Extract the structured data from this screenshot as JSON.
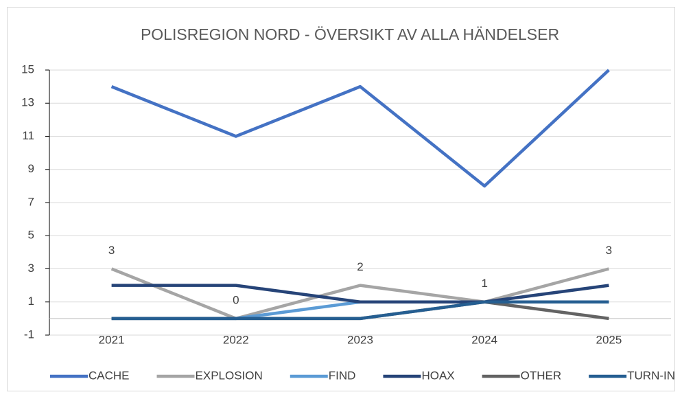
{
  "chart_data": {
    "type": "line",
    "title": "POLISREGION NORD - ÖVERSIKT AV ALLA HÄNDELSER",
    "categories": [
      "2021",
      "2022",
      "2023",
      "2024",
      "2025"
    ],
    "series": [
      {
        "name": "CACHE",
        "color": "#4472c4",
        "values": [
          14,
          11,
          14,
          8,
          15
        ]
      },
      {
        "name": "EXPLOSION",
        "color": "#a5a5a5",
        "values": [
          3,
          0,
          2,
          1,
          3
        ],
        "data_labels": true
      },
      {
        "name": "FIND",
        "color": "#5b9bd5",
        "values": [
          0,
          0,
          1,
          1,
          1
        ]
      },
      {
        "name": "HOAX",
        "color": "#264478",
        "values": [
          2,
          2,
          1,
          1,
          2
        ]
      },
      {
        "name": "OTHER",
        "color": "#636363",
        "values": [
          0,
          0,
          0,
          1,
          0
        ]
      },
      {
        "name": "TURN-IN",
        "color": "#255e91",
        "values": [
          0,
          0,
          0,
          1,
          1
        ]
      }
    ],
    "ylim": [
      -1,
      15
    ],
    "yticks": [
      -1,
      1,
      3,
      5,
      7,
      9,
      11,
      13,
      15
    ],
    "grid": true,
    "legend": "bottom"
  }
}
